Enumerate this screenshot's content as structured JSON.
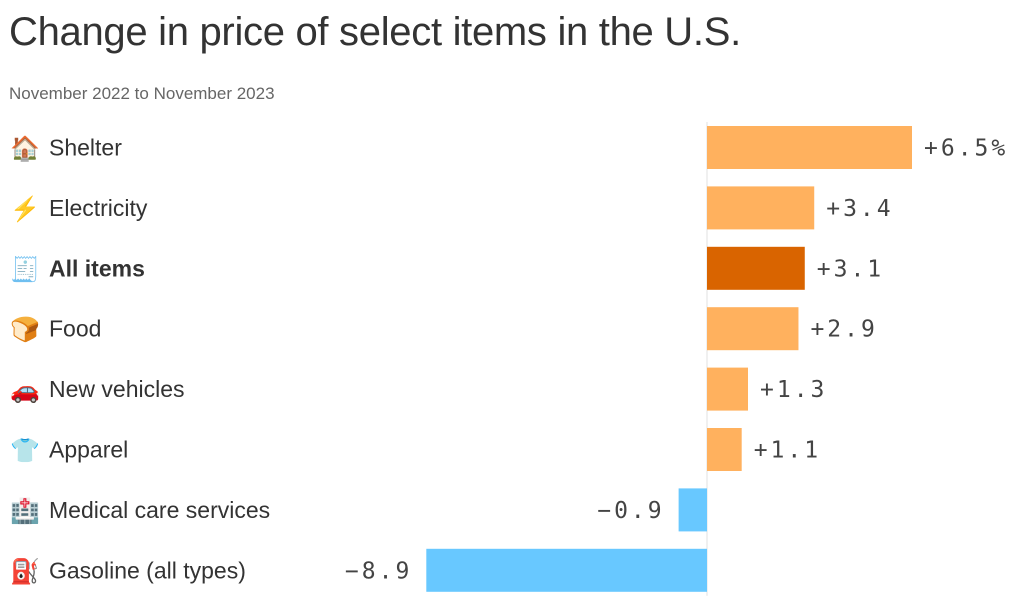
{
  "chart_data": {
    "type": "bar",
    "orientation": "horizontal",
    "title": "Change in price of select items in the U.S.",
    "subtitle": "November 2022 to November 2023",
    "unit": "%",
    "categories": [
      {
        "label": "Shelter",
        "icon": "house-icon",
        "glyph": "🏠",
        "value": 6.5,
        "value_label": "+6.5%",
        "highlight": false
      },
      {
        "label": "Electricity",
        "icon": "lightning-icon",
        "glyph": "⚡",
        "value": 3.4,
        "value_label": "+3.4",
        "highlight": false
      },
      {
        "label": "All items",
        "icon": "receipt-icon",
        "glyph": "🧾",
        "value": 3.1,
        "value_label": "+3.1",
        "highlight": true
      },
      {
        "label": "Food",
        "icon": "bread-icon",
        "glyph": "🍞",
        "value": 2.9,
        "value_label": "+2.9",
        "highlight": false
      },
      {
        "label": "New vehicles",
        "icon": "car-icon",
        "glyph": "🚗",
        "value": 1.3,
        "value_label": "+1.3",
        "highlight": false
      },
      {
        "label": "Apparel",
        "icon": "tshirt-icon",
        "glyph": "👕",
        "value": 1.1,
        "value_label": "+1.1",
        "highlight": false
      },
      {
        "label": "Medical care services",
        "icon": "hospital-icon",
        "glyph": "🏥",
        "value": -0.9,
        "value_label": "−0.9",
        "highlight": false
      },
      {
        "label": "Gasoline (all types)",
        "icon": "fuel-pump-icon",
        "glyph": "⛽",
        "value": -8.9,
        "value_label": "−8.9",
        "highlight": false
      }
    ],
    "colors": {
      "positive": "#FFB15E",
      "highlight": "#D96400",
      "negative": "#68C8FF",
      "axis": "#e0e0e0"
    }
  }
}
